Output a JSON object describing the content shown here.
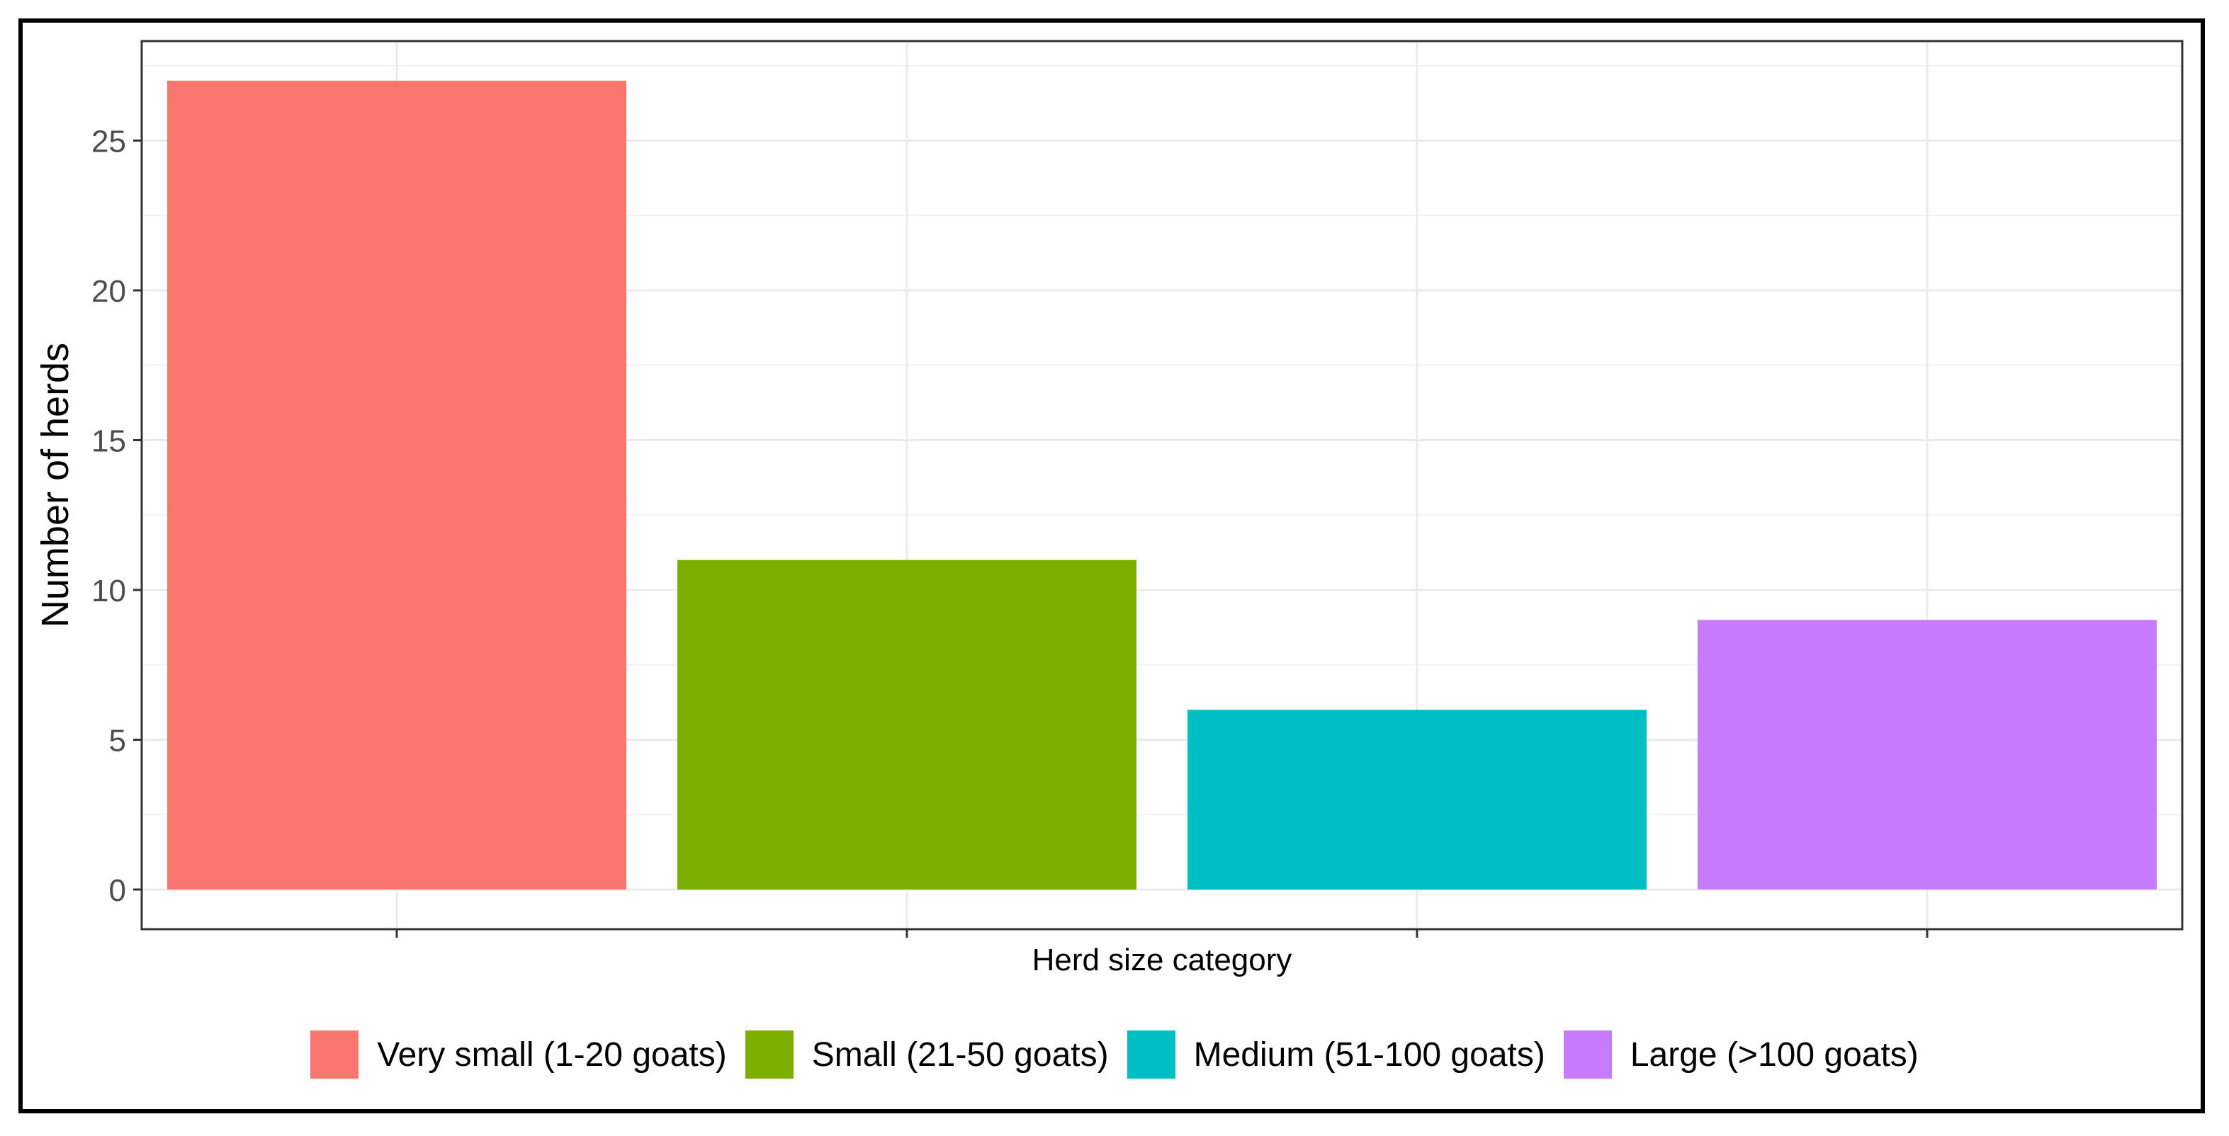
{
  "chart_data": {
    "type": "bar",
    "categories": [
      "Very small (1-20 goats)",
      "Small (21-50 goats)",
      "Medium (51-100 goats)",
      "Large (>100 goats)"
    ],
    "values": [
      27,
      11,
      6,
      9
    ],
    "colors": [
      "#F8766D",
      "#7CAE00",
      "#00BFC4",
      "#C77CFF"
    ],
    "xlabel": "Herd size category",
    "ylabel": "Number of herds",
    "ylim": [
      0,
      28.35
    ],
    "yticks": [
      0,
      5,
      10,
      15,
      20,
      25
    ],
    "grid": true,
    "legend_position": "bottom",
    "legend": [
      {
        "label": "Very small (1-20 goats)",
        "color": "#F8766D"
      },
      {
        "label": "Small (21-50 goats)",
        "color": "#7CAE00"
      },
      {
        "label": "Medium (51-100 goats)",
        "color": "#00BFC4"
      },
      {
        "label": "Large (>100 goats)",
        "color": "#C77CFF"
      }
    ]
  }
}
